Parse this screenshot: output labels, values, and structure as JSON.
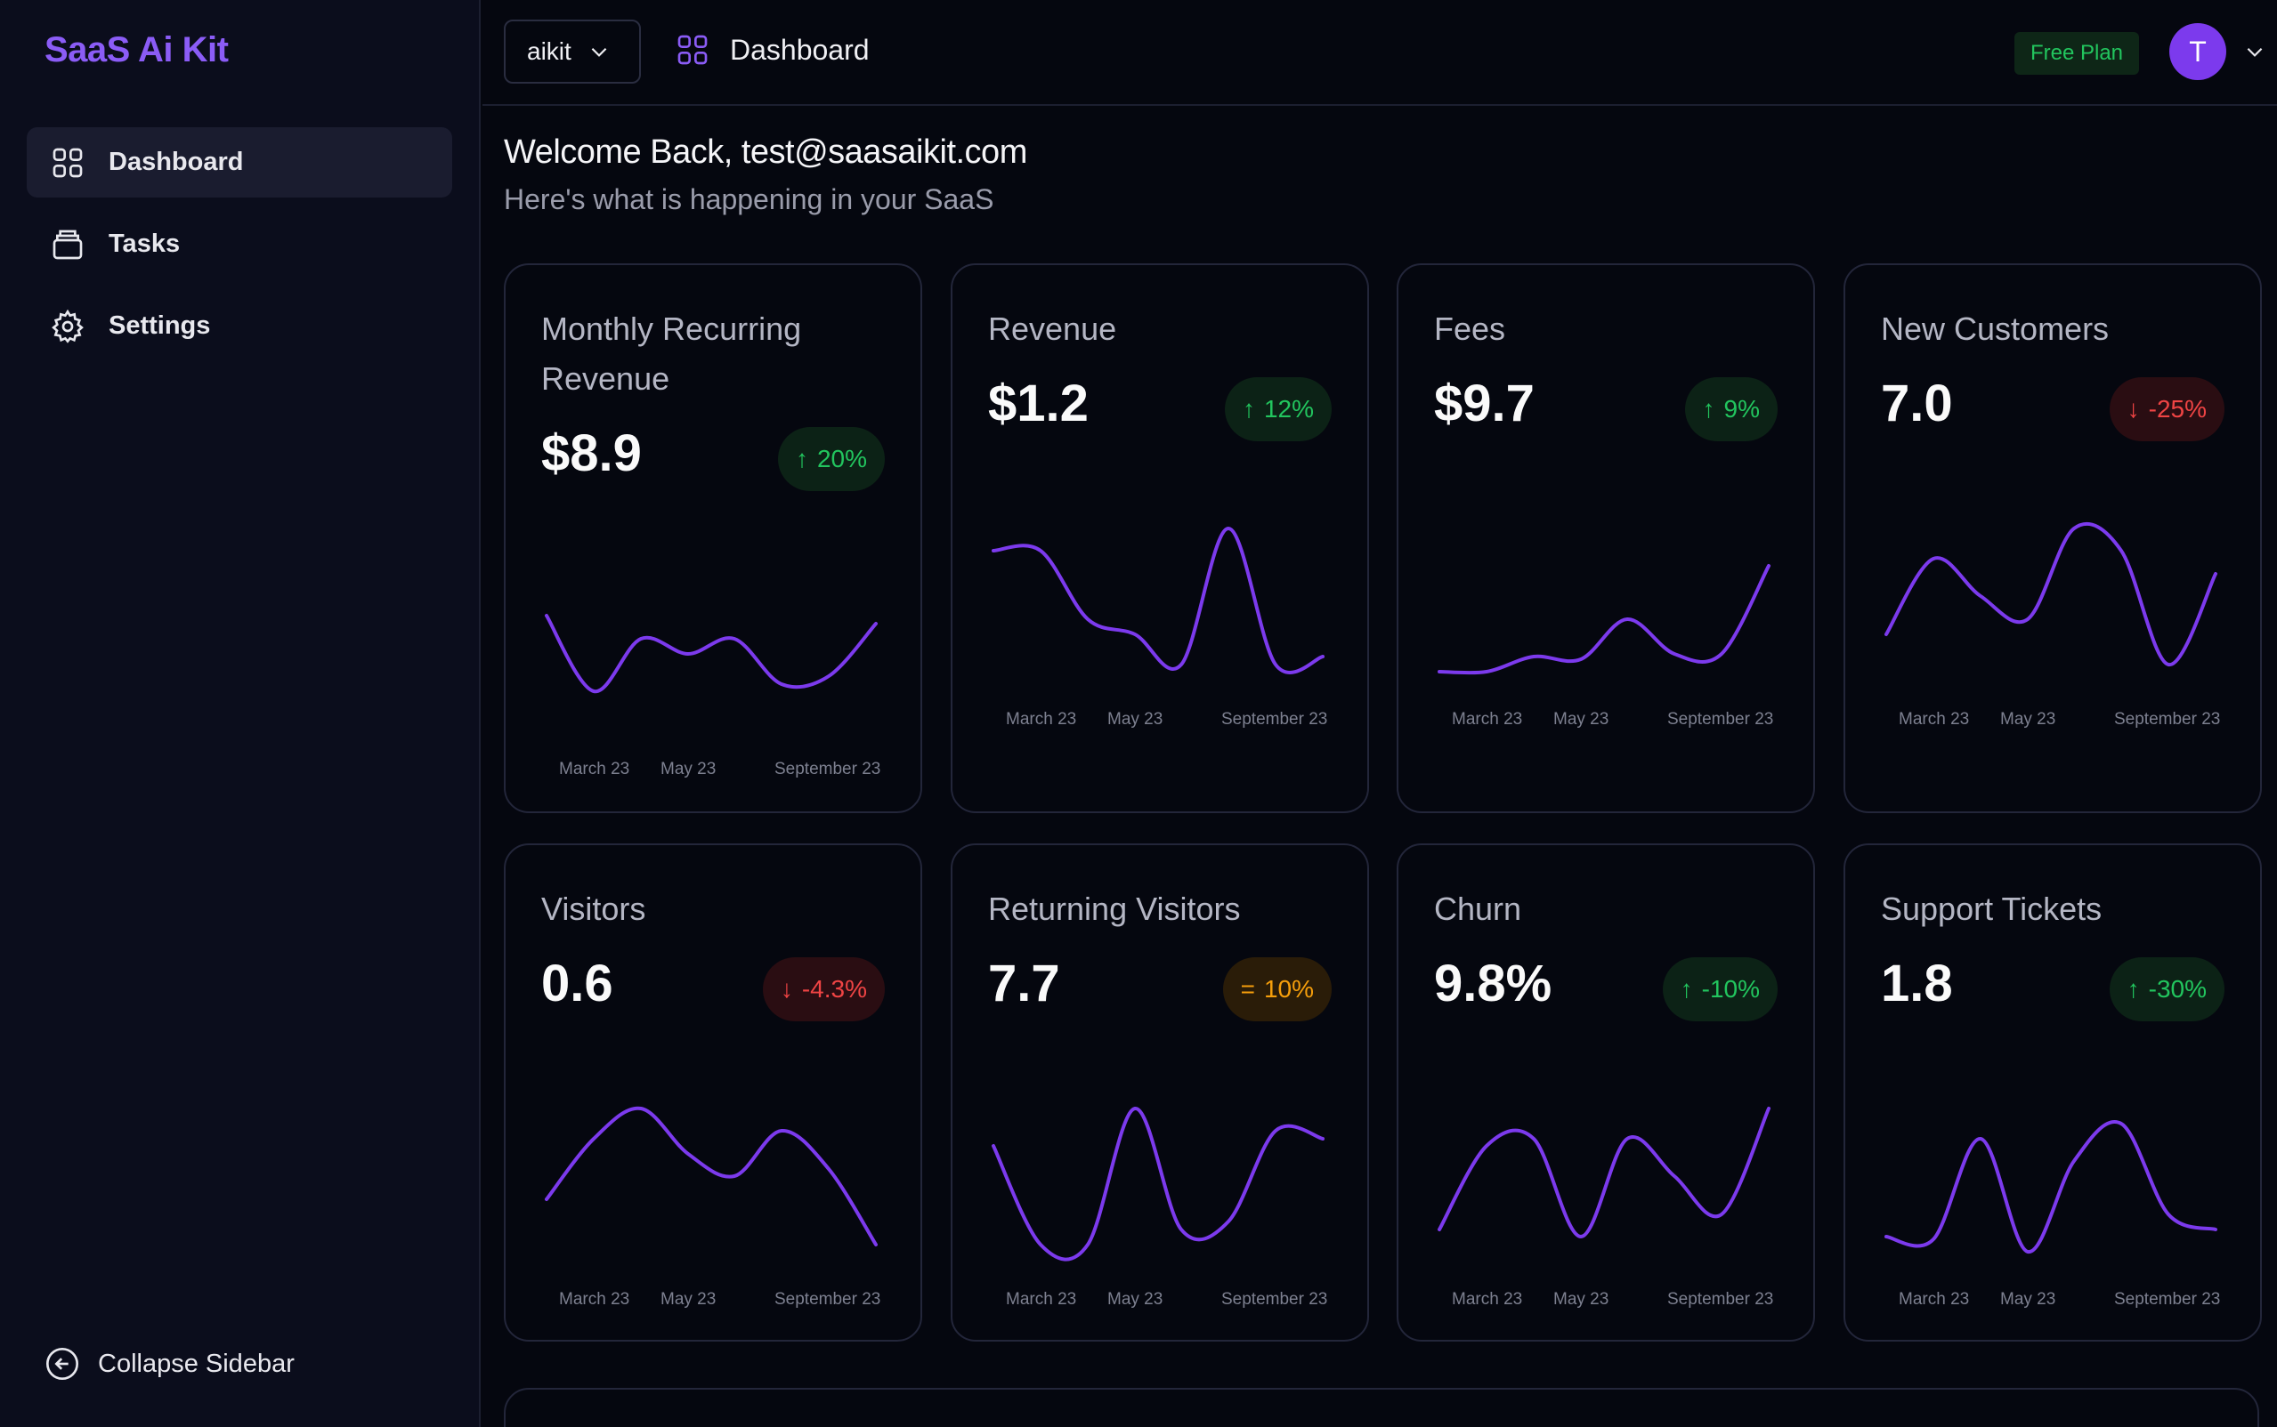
{
  "sidebar": {
    "brand": "SaaS Ai Kit",
    "items": [
      {
        "label": "Dashboard",
        "icon": "grid-icon",
        "active": true
      },
      {
        "label": "Tasks",
        "icon": "layers-icon",
        "active": false
      },
      {
        "label": "Settings",
        "icon": "gear-icon",
        "active": false
      }
    ],
    "collapse_label": "Collapse Sidebar"
  },
  "topbar": {
    "project": "aikit",
    "breadcrumb": "Dashboard",
    "plan": "Free Plan",
    "avatar_initial": "T"
  },
  "welcome": {
    "title": "Welcome Back, test@saasaikit.com",
    "subtitle": "Here's what is happening in your SaaS"
  },
  "colors": {
    "accent": "#7c3aed",
    "positive": "#22c55e",
    "negative": "#ef4444",
    "neutral": "#f59e0b"
  },
  "axis_labels": [
    "March 23",
    "May 23",
    "September 23"
  ],
  "cards": [
    {
      "title": "Monthly Recurring Revenue",
      "value": "$8.9",
      "change": "20%",
      "trend": "up",
      "spark": [
        70,
        20,
        55,
        45,
        55,
        25,
        30,
        65
      ]
    },
    {
      "title": "Revenue",
      "value": "$1.2",
      "change": "12%",
      "trend": "up",
      "spark": [
        80,
        80,
        35,
        25,
        5,
        95,
        5,
        10
      ]
    },
    {
      "title": "Fees",
      "value": "$9.7",
      "change": "9%",
      "trend": "up",
      "spark": [
        0,
        0,
        10,
        8,
        35,
        12,
        12,
        70
      ]
    },
    {
      "title": "New Customers",
      "value": "7.0",
      "change": "-25%",
      "trend": "down",
      "spark": [
        25,
        75,
        50,
        35,
        95,
        80,
        5,
        65
      ]
    },
    {
      "title": "Visitors",
      "value": "0.6",
      "change": "-4.3%",
      "trend": "down",
      "spark": [
        35,
        75,
        95,
        65,
        50,
        80,
        55,
        5
      ]
    },
    {
      "title": "Returning Visitors",
      "value": "7.7",
      "change": "10%",
      "trend": "flat",
      "spark": [
        70,
        5,
        5,
        95,
        15,
        20,
        80,
        75
      ]
    },
    {
      "title": "Churn",
      "value": "9.8%",
      "change": "-10%",
      "trend": "up",
      "spark": [
        15,
        70,
        75,
        10,
        75,
        50,
        25,
        95
      ]
    },
    {
      "title": "Support Tickets",
      "value": "1.8",
      "change": "-30%",
      "trend": "up",
      "spark": [
        10,
        8,
        75,
        0,
        60,
        85,
        25,
        15
      ]
    }
  ]
}
